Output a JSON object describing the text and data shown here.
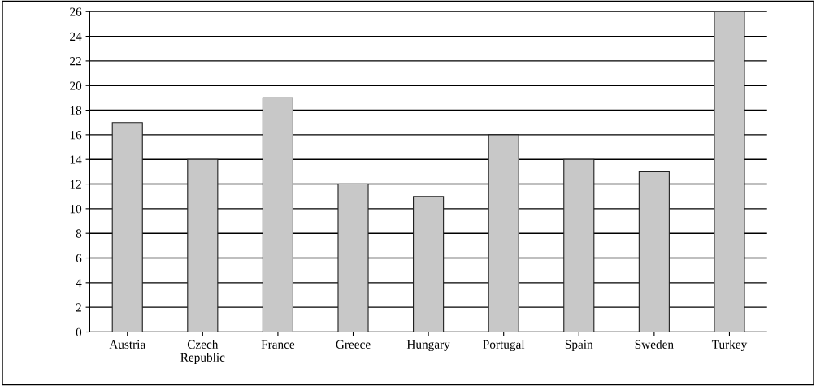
{
  "chart_data": {
    "type": "bar",
    "categories": [
      "Austria",
      "Czech\nRepublic",
      "France",
      "Greece",
      "Hungary",
      "Portugal",
      "Spain",
      "Sweden",
      "Turkey"
    ],
    "values": [
      17,
      14,
      19,
      12,
      11,
      16,
      14,
      13,
      26
    ],
    "color": "#c8c8c8",
    "ylim": [
      0,
      26
    ],
    "yticks": [
      0,
      2,
      4,
      6,
      8,
      10,
      12,
      14,
      16,
      18,
      20,
      22,
      24,
      26
    ],
    "grid": "y"
  }
}
